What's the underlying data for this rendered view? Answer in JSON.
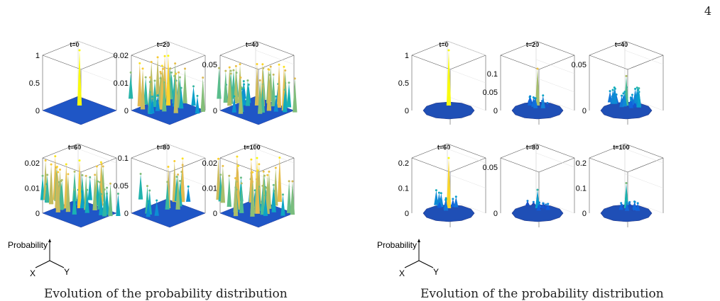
{
  "page": {
    "number": "4"
  },
  "legend": {
    "vertical_axis": "Probability",
    "x_axis": "X",
    "y_axis": "Y"
  },
  "figures": [
    {
      "caption": "Evolution of the probability distribution",
      "profile": "spread",
      "subplots": [
        {
          "title": "t=0",
          "ticks": [
            "0",
            "0.5",
            "1"
          ],
          "zmax": 1,
          "peak": 1
        },
        {
          "title": "t=20",
          "ticks": [
            "0",
            "0.01",
            "0.02"
          ],
          "zmax": 0.02,
          "peak": 0.018
        },
        {
          "title": "t=40",
          "ticks": [
            "0",
            "0.05"
          ],
          "zmax": 0.06,
          "peak": 0.045
        },
        {
          "title": "t=60",
          "ticks": [
            "0",
            "0.01",
            "0.02"
          ],
          "zmax": 0.022,
          "peak": 0.019
        },
        {
          "title": "t=80",
          "ticks": [
            "0",
            "0.05",
            "0.1"
          ],
          "zmax": 0.1,
          "peak": 0.075
        },
        {
          "title": "t=100",
          "ticks": [
            "0",
            "0.01",
            "0.02"
          ],
          "zmax": 0.022,
          "peak": 0.02
        }
      ]
    },
    {
      "caption": "Evolution of the probability distribution",
      "profile": "localized",
      "subplots": [
        {
          "title": "t=0",
          "ticks": [
            "0",
            "0.5",
            "1"
          ],
          "zmax": 1,
          "peak": 1
        },
        {
          "title": "t=20",
          "ticks": [
            "0",
            "0.05",
            "0.1"
          ],
          "zmax": 0.15,
          "peak": 0.1
        },
        {
          "title": "t=40",
          "ticks": [
            "0",
            "0.05"
          ],
          "zmax": 0.06,
          "peak": 0.032
        },
        {
          "title": "t=60",
          "ticks": [
            "0",
            "0.1",
            "0.2"
          ],
          "zmax": 0.22,
          "peak": 0.2
        },
        {
          "title": "t=80",
          "ticks": [
            "0",
            "0.05"
          ],
          "zmax": 0.06,
          "peak": 0.02
        },
        {
          "title": "t=100",
          "ticks": [
            "0",
            "0.1",
            "0.2"
          ],
          "zmax": 0.22,
          "peak": 0.1
        }
      ]
    }
  ]
}
